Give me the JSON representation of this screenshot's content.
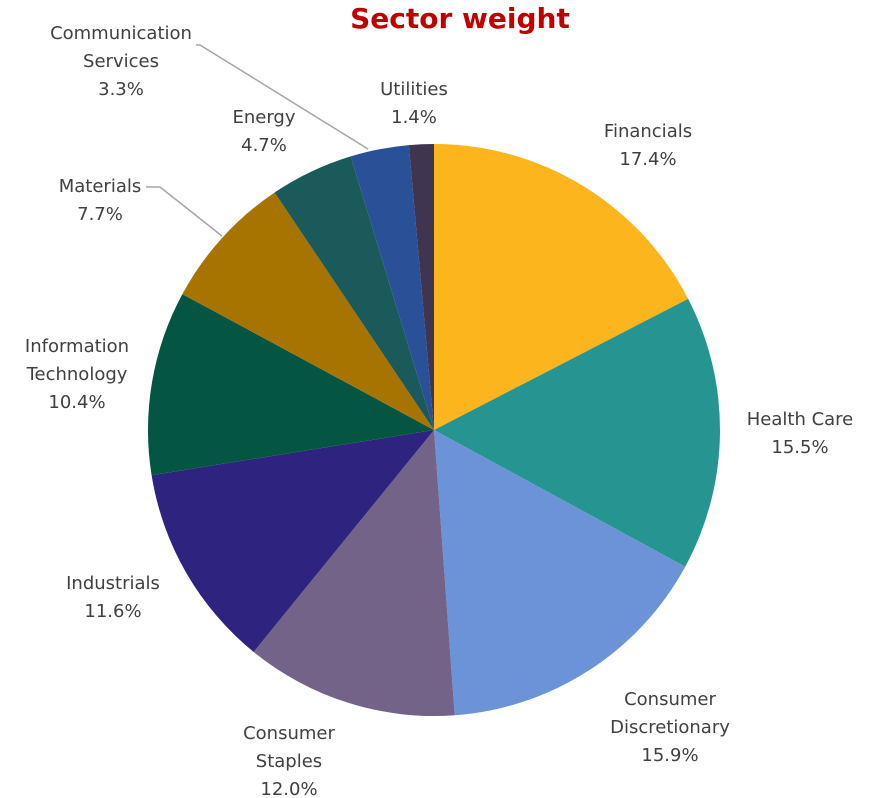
{
  "chart_data": {
    "type": "pie",
    "title": "Sector weight",
    "categories": [
      "Financials",
      "Health Care",
      "Consumer Discretionary",
      "Consumer Staples",
      "Industrials",
      "Information Technology",
      "Materials",
      "Energy",
      "Communication Services",
      "Utilities"
    ],
    "values": [
      17.4,
      15.5,
      15.9,
      12.0,
      11.6,
      10.4,
      7.7,
      4.7,
      3.3,
      1.4
    ],
    "value_labels": [
      "17.4%",
      "15.5%",
      "15.9%",
      "12.0%",
      "11.6%",
      "10.4%",
      "7.7%",
      "4.7%",
      "3.3%",
      "1.4%"
    ],
    "colors": [
      "#FDB51E",
      "#269591",
      "#6C93D8",
      "#736388",
      "#2E237E",
      "#045642",
      "#A87400",
      "#1A5A5A",
      "#2A5098",
      "#3F3550"
    ]
  }
}
